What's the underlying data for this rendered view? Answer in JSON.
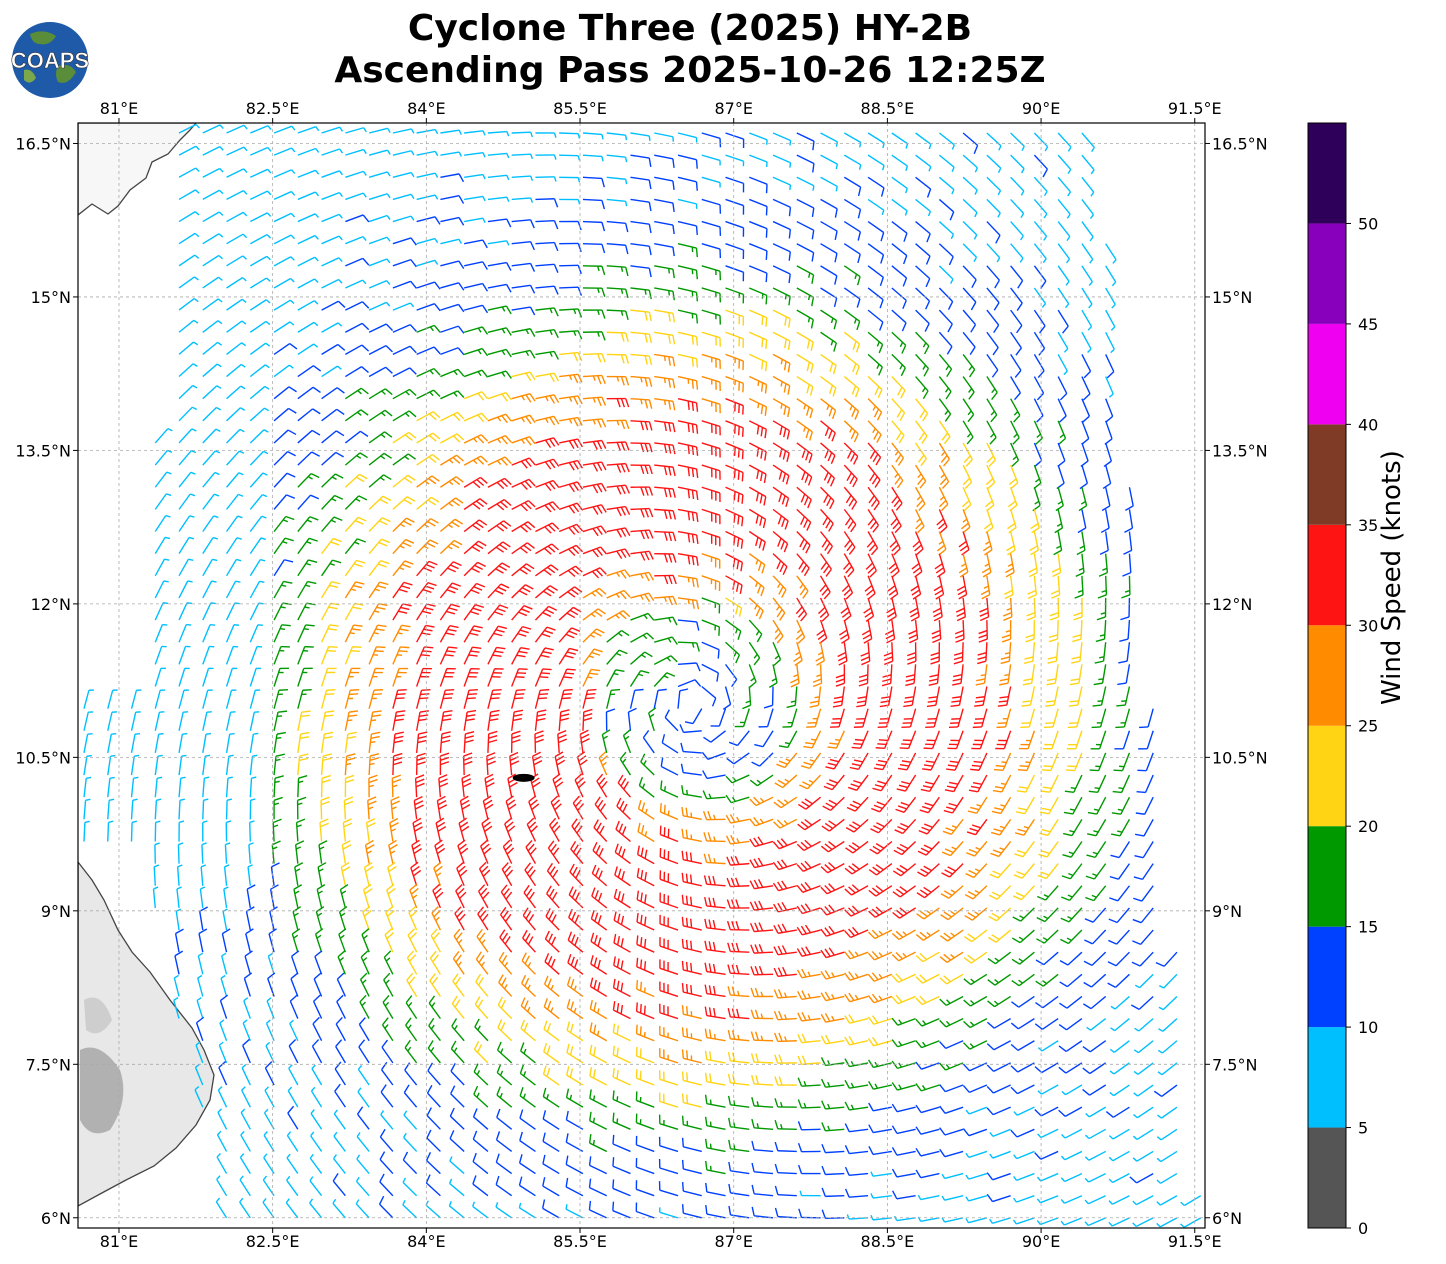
{
  "header": {
    "title_line1": "Cyclone Three (2025) HY-2B",
    "title_line2": "Ascending Pass 2025-10-26 12:25Z",
    "logo_text": "COAPS"
  },
  "map": {
    "lon_ticks": [
      "81°E",
      "82.5°E",
      "84°E",
      "85.5°E",
      "87°E",
      "88.5°E",
      "90°E",
      "91.5°E"
    ],
    "lat_ticks": [
      "16.5°N",
      "15°N",
      "13.5°N",
      "12°N",
      "10.5°N",
      "9°N",
      "7.5°N",
      "6°N"
    ],
    "lon_range": [
      80.6,
      91.6
    ],
    "lat_range": [
      5.9,
      16.7
    ],
    "storm_center": {
      "lon": 84.95,
      "lat": 10.3
    },
    "wind_center": {
      "lon": 86.6,
      "lat": 11.0
    },
    "grid": true
  },
  "colorbar": {
    "label": "Wind Speed (knots)",
    "ticks": [
      "0",
      "5",
      "10",
      "15",
      "20",
      "25",
      "30",
      "35",
      "40",
      "45",
      "50"
    ],
    "colors": [
      "#555555",
      "#00bfff",
      "#0040ff",
      "#009900",
      "#ffd414",
      "#ff8c00",
      "#ff1414",
      "#7f3b26",
      "#f000f0",
      "#8800bb",
      "#2e0059"
    ]
  }
}
